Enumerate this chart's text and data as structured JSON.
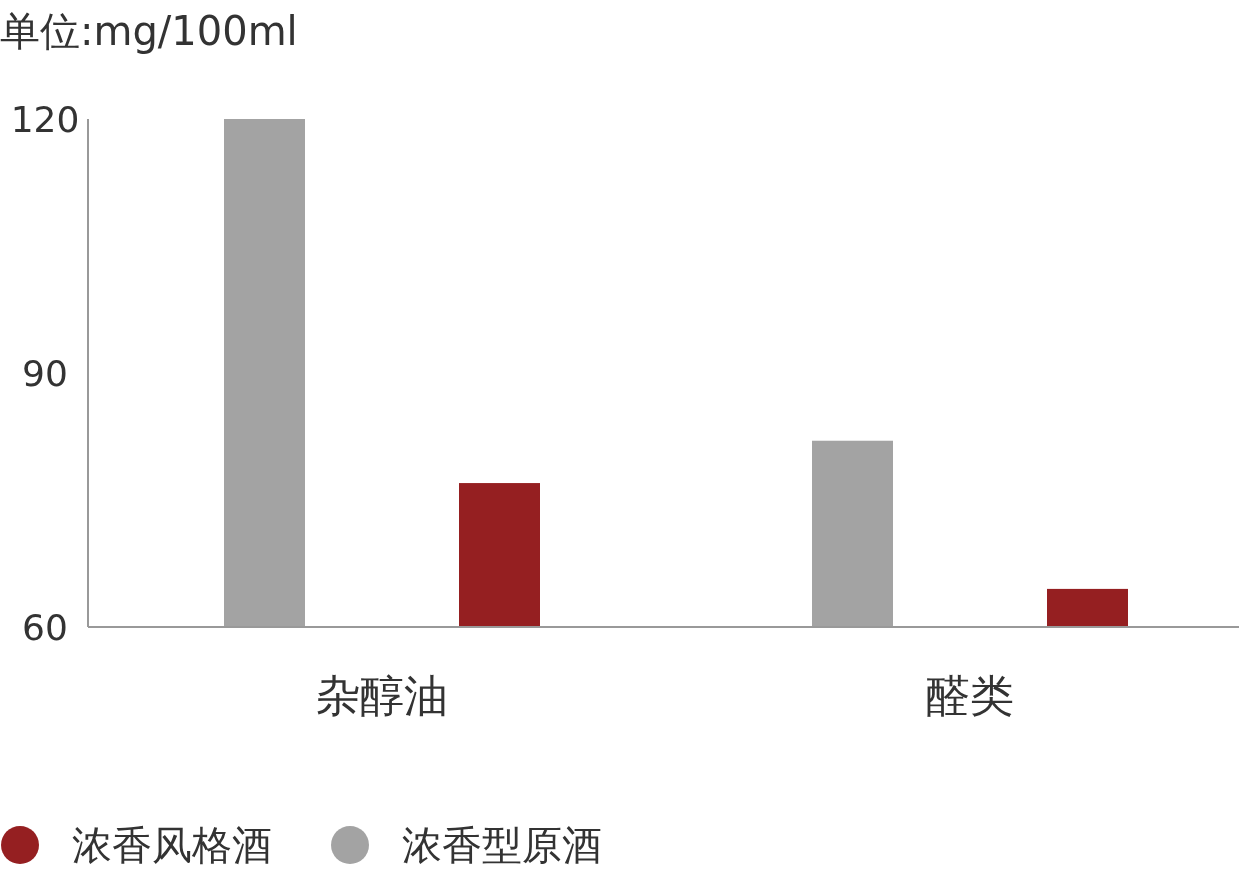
{
  "chart_data": {
    "type": "bar",
    "title": "单位:mg/100ml",
    "categories": [
      "杂醇油",
      "醛类"
    ],
    "series": [
      {
        "name": "浓香型原酒",
        "color": "#a3a3a3",
        "values": [
          120,
          82
        ]
      },
      {
        "name": "浓香风格酒",
        "color": "#951f21",
        "values": [
          77,
          64.5
        ]
      }
    ],
    "ylim": [
      60,
      120
    ],
    "yticks": [
      60,
      90,
      120
    ],
    "grid": false,
    "legend": "bottom"
  }
}
